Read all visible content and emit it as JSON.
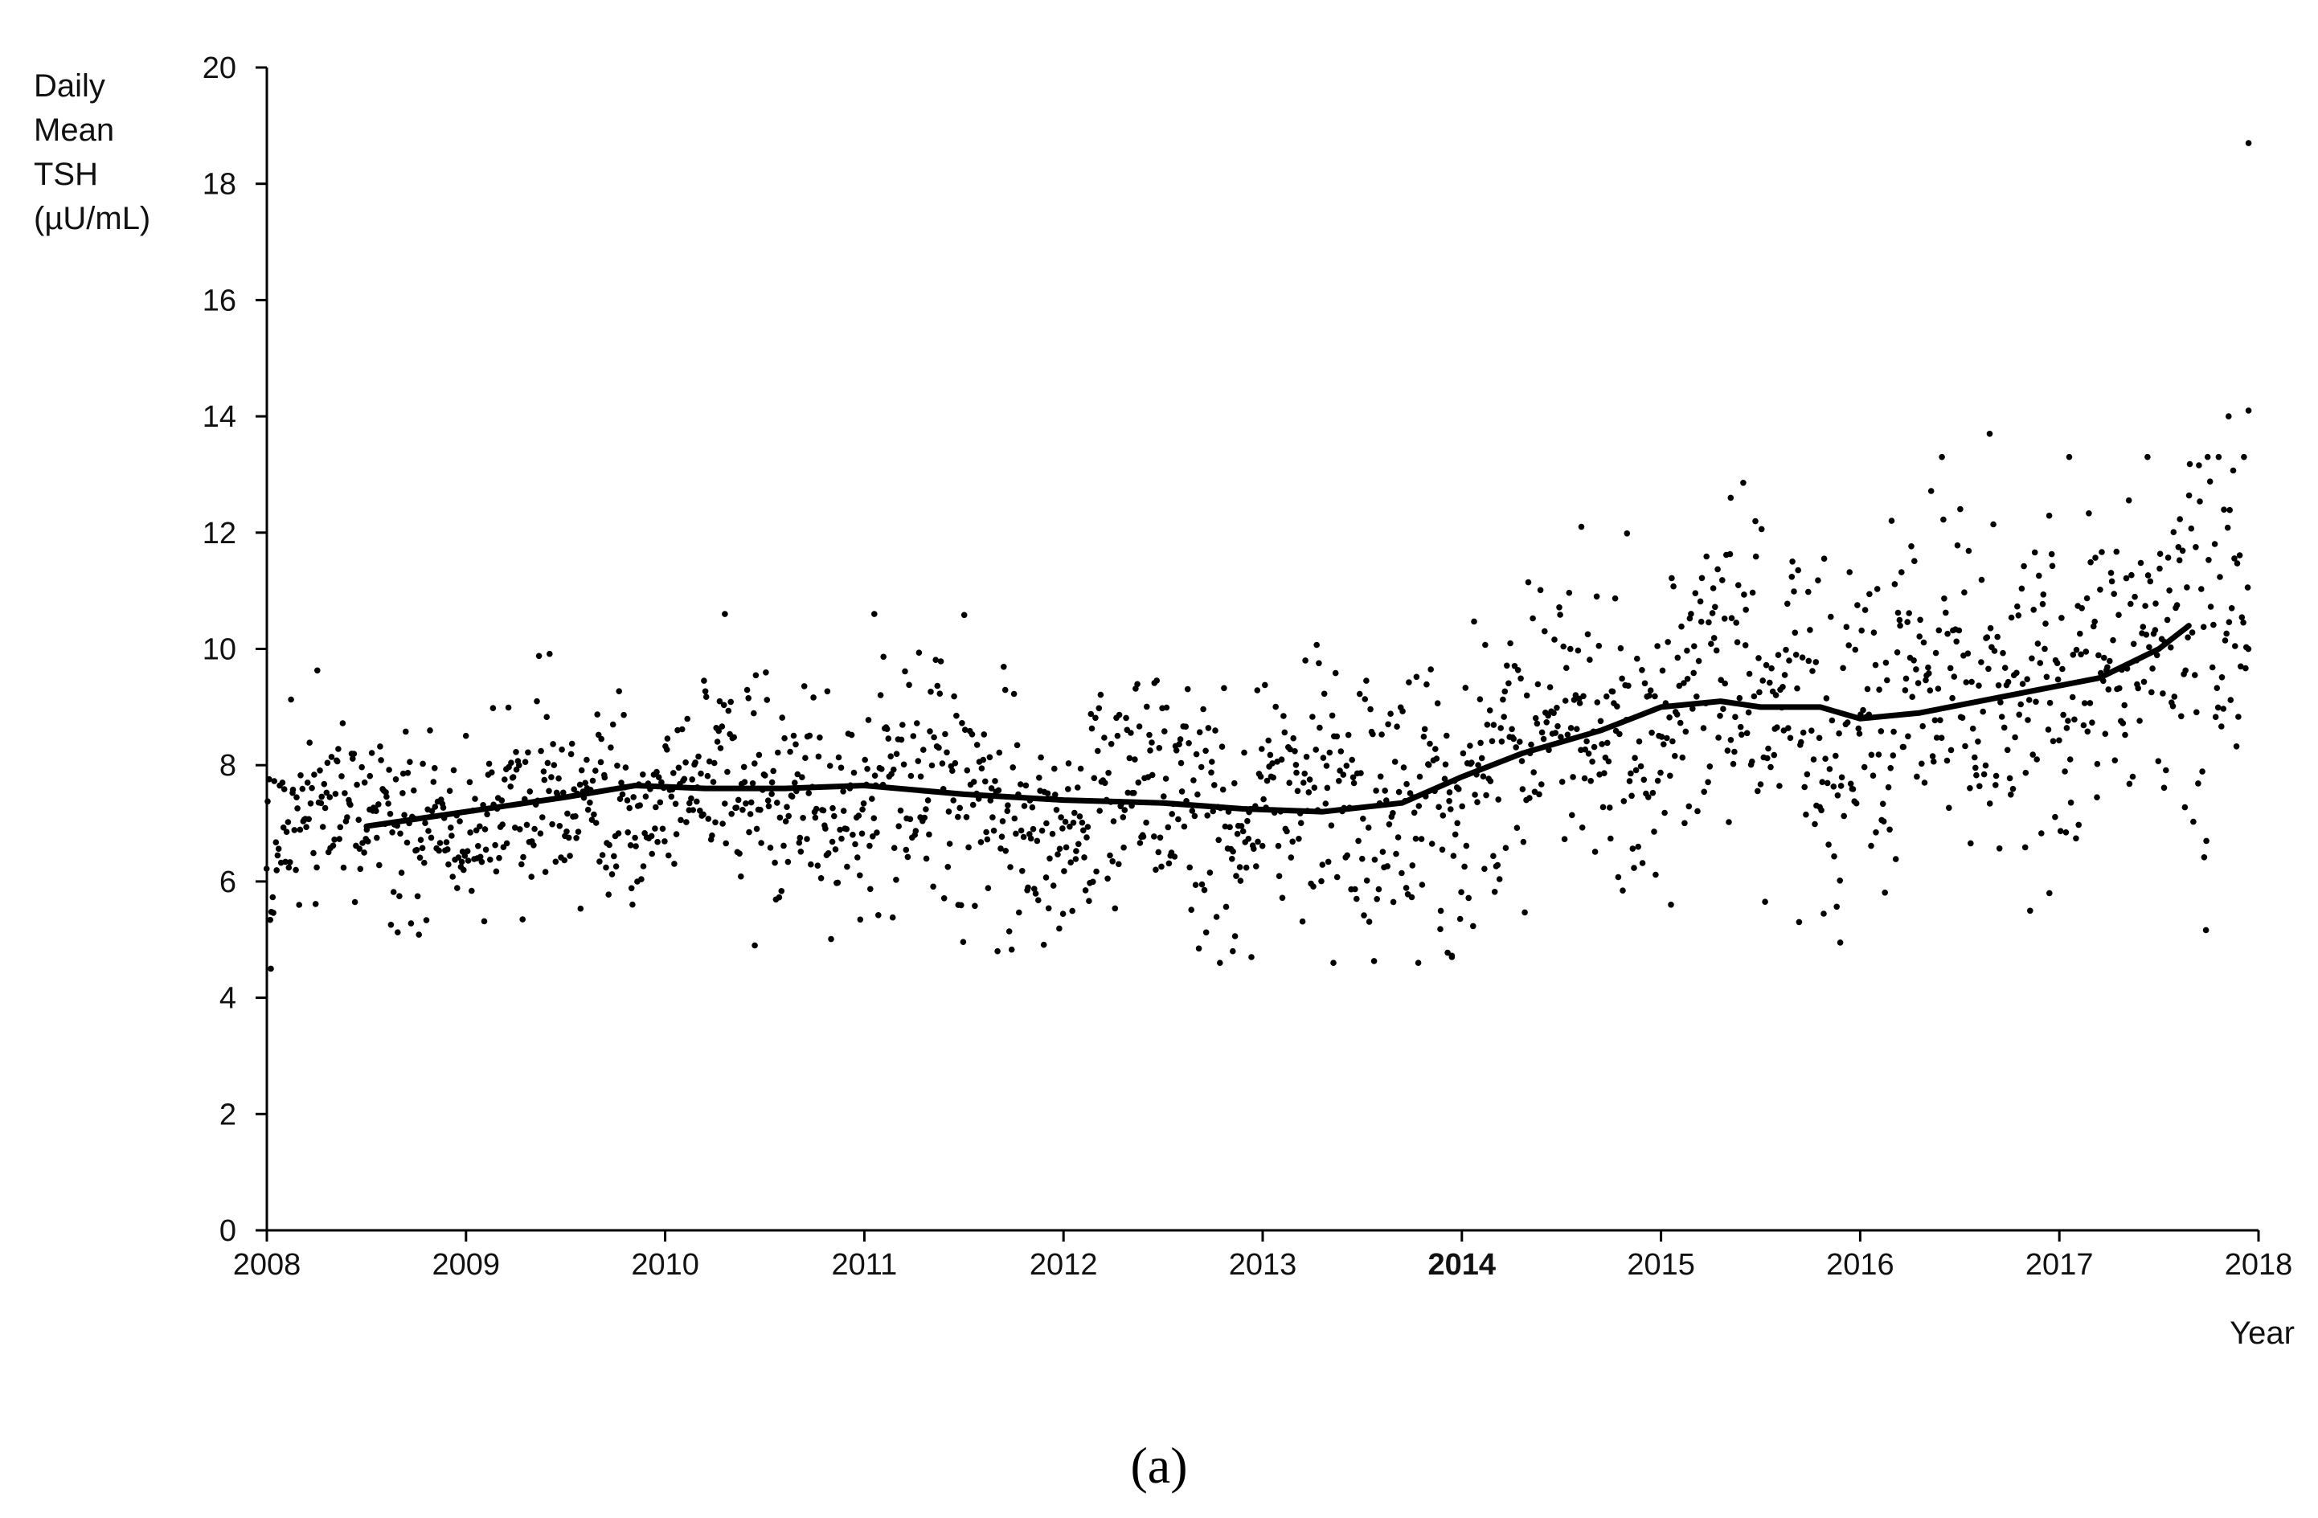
{
  "chart_data": {
    "type": "scatter",
    "ylabel_lines": [
      "Daily",
      "Mean",
      "TSH",
      "(µU/mL)"
    ],
    "xlabel": "Year",
    "caption": "(a)",
    "x_ticks": [
      "2008",
      "2009",
      "2010",
      "2011",
      "2012",
      "2013",
      "2014",
      "2015",
      "2016",
      "2017",
      "2018"
    ],
    "bold_x_tick": "2014",
    "y_ticks": [
      "0",
      "2",
      "4",
      "6",
      "8",
      "10",
      "12",
      "14",
      "16",
      "18",
      "20"
    ],
    "xlim": [
      2008,
      2018
    ],
    "ylim": [
      0,
      20
    ],
    "grid": false,
    "marker_color": "#000000",
    "series": [
      {
        "kind": "daily-scatter",
        "x_range": [
          2008.0,
          2017.95
        ],
        "approx_points": 1800,
        "outliers": [
          {
            "x": 2017.95,
            "y": 18.7
          },
          {
            "x": 2016.65,
            "y": 13.7
          },
          {
            "x": 2017.95,
            "y": 14.1
          },
          {
            "x": 2017.85,
            "y": 14.0
          },
          {
            "x": 2015.35,
            "y": 12.6
          },
          {
            "x": 2014.6,
            "y": 12.1
          },
          {
            "x": 2010.3,
            "y": 10.6
          },
          {
            "x": 2011.05,
            "y": 10.6
          },
          {
            "x": 2013.95,
            "y": 4.7
          },
          {
            "x": 2012.85,
            "y": 4.8
          },
          {
            "x": 2015.9,
            "y": 4.95
          },
          {
            "x": 2008.02,
            "y": 4.5
          },
          {
            "x": 2010.45,
            "y": 4.9
          },
          {
            "x": 2015.05,
            "y": 5.6
          },
          {
            "x": 2016.95,
            "y": 5.8
          }
        ]
      },
      {
        "kind": "trend-line",
        "x": [
          2008.5,
          2009.0,
          2009.5,
          2009.85,
          2010.2,
          2010.6,
          2011.0,
          2011.5,
          2012.0,
          2012.5,
          2012.9,
          2013.3,
          2013.7,
          2014.0,
          2014.3,
          2014.7,
          2015.0,
          2015.3,
          2015.5,
          2015.8,
          2016.0,
          2016.3,
          2016.6,
          2016.9,
          2017.2,
          2017.5,
          2017.65
        ],
        "y": [
          6.95,
          7.2,
          7.45,
          7.65,
          7.6,
          7.6,
          7.65,
          7.5,
          7.4,
          7.35,
          7.25,
          7.2,
          7.35,
          7.8,
          8.2,
          8.6,
          9.0,
          9.1,
          9.0,
          9.0,
          8.8,
          8.9,
          9.1,
          9.3,
          9.5,
          10.0,
          10.4
        ]
      }
    ]
  }
}
